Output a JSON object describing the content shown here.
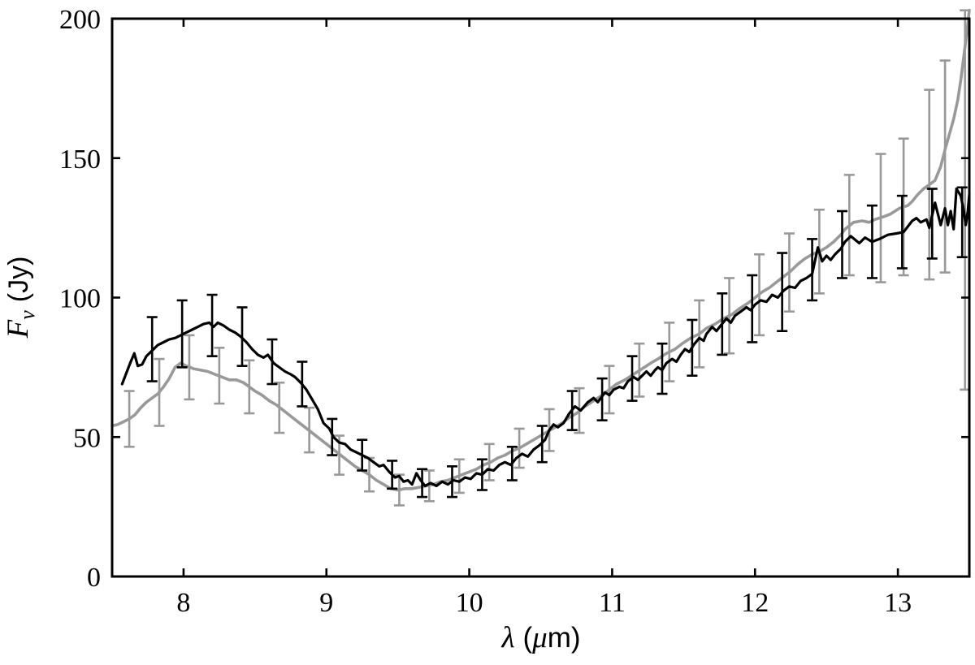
{
  "figure": {
    "background": "#ffffff",
    "axis_color": "#000000"
  },
  "chart_data": {
    "type": "line",
    "title": "",
    "xlabel": "λ (μm)",
    "ylabel": "F_ν (Jy)",
    "xlabel_parts": {
      "lambda": "λ",
      "open": "(",
      "mu": "μ",
      "close": "m)"
    },
    "ylabel_parts": {
      "F": "F",
      "nu": "ν",
      "units": "(Jy)"
    },
    "xlim": [
      7.5,
      13.5
    ],
    "ylim": [
      0,
      200
    ],
    "xticks": [
      8,
      9,
      10,
      11,
      12,
      13
    ],
    "yticks": [
      0,
      50,
      100,
      150,
      200
    ],
    "grid": false,
    "legend": "none",
    "series": [
      {
        "name": "gray-spectrum",
        "color": "#999999",
        "line_width": 3.6,
        "x": [
          7.5,
          7.54,
          7.58,
          7.62,
          7.66,
          7.7,
          7.74,
          7.78,
          7.82,
          7.86,
          7.9,
          7.94,
          7.98,
          8.02,
          8.07,
          8.12,
          8.17,
          8.22,
          8.27,
          8.32,
          8.37,
          8.42,
          8.46,
          8.5,
          8.55,
          8.6,
          8.65,
          8.7,
          8.75,
          8.8,
          8.85,
          8.9,
          8.95,
          9.0,
          9.05,
          9.1,
          9.15,
          9.2,
          9.25,
          9.3,
          9.35,
          9.4,
          9.45,
          9.5,
          9.55,
          9.6,
          9.65,
          9.7,
          9.75,
          9.8,
          9.85,
          9.9,
          9.95,
          10.0,
          10.05,
          10.1,
          10.15,
          10.2,
          10.25,
          10.3,
          10.35,
          10.4,
          10.45,
          10.5,
          10.55,
          10.6,
          10.65,
          10.7,
          10.75,
          10.81,
          10.87,
          10.93,
          10.98,
          11.03,
          11.09,
          11.15,
          11.21,
          11.27,
          11.32,
          11.38,
          11.44,
          11.49,
          11.55,
          11.61,
          11.66,
          11.72,
          11.78,
          11.84,
          11.89,
          11.95,
          12.0,
          12.05,
          12.1,
          12.15,
          12.2,
          12.25,
          12.3,
          12.35,
          12.4,
          12.45,
          12.5,
          12.55,
          12.6,
          12.63,
          12.69,
          12.75,
          12.8,
          12.84,
          12.9,
          12.95,
          13.01,
          13.07,
          13.1,
          13.14,
          13.18,
          13.22,
          13.26,
          13.3,
          13.33,
          13.36,
          13.39,
          13.42,
          13.44,
          13.46,
          13.48,
          13.5
        ],
        "y": [
          54,
          54.5,
          55.5,
          56.5,
          58,
          60.5,
          62.5,
          64,
          65.5,
          68,
          71,
          75,
          76.5,
          75.5,
          74.5,
          74,
          73.5,
          72.5,
          71.5,
          70.5,
          70.5,
          69.5,
          68,
          66.5,
          65,
          63,
          61.5,
          59.5,
          57.5,
          55.5,
          53.5,
          51.5,
          49.5,
          47.5,
          45.5,
          43.5,
          41.5,
          39.5,
          38,
          36.5,
          34.5,
          33,
          31.5,
          31,
          31.5,
          31.5,
          32,
          32.5,
          33,
          34,
          34.5,
          35.5,
          36.5,
          37.5,
          38.5,
          40,
          41,
          42.5,
          43.5,
          45,
          46,
          47.5,
          49,
          50.5,
          52,
          53.5,
          55,
          57,
          58.5,
          61,
          63,
          65,
          67,
          69,
          70.5,
          72.5,
          74.5,
          76.5,
          78,
          80,
          81.5,
          83.5,
          85.5,
          87,
          89,
          90.5,
          92.5,
          94,
          96,
          98,
          100,
          102,
          103.5,
          105.5,
          107.5,
          109.5,
          112,
          114,
          115.5,
          116.5,
          118,
          120,
          122.5,
          124.5,
          127,
          127.5,
          127,
          128,
          129,
          130,
          132,
          133,
          134.5,
          137,
          139,
          140.5,
          142,
          147,
          153,
          158.5,
          164,
          171,
          178,
          186,
          194,
          203
        ],
        "errorbars": [
          [
            7.62,
            56.5,
            10
          ],
          [
            7.83,
            66,
            12
          ],
          [
            8.04,
            75,
            11.5
          ],
          [
            8.25,
            72,
            10
          ],
          [
            8.46,
            68,
            9.5
          ],
          [
            8.67,
            60.5,
            9
          ],
          [
            8.88,
            52.5,
            8
          ],
          [
            9.09,
            43.5,
            7
          ],
          [
            9.3,
            36.5,
            6
          ],
          [
            9.51,
            31,
            5.5
          ],
          [
            9.72,
            32.5,
            5.5
          ],
          [
            9.93,
            36,
            6
          ],
          [
            10.14,
            41,
            6.5
          ],
          [
            10.35,
            46,
            7
          ],
          [
            10.56,
            52.5,
            7.5
          ],
          [
            10.77,
            59.5,
            8
          ],
          [
            10.98,
            67,
            8.5
          ],
          [
            11.19,
            74,
            9.5
          ],
          [
            11.4,
            80.5,
            10.5
          ],
          [
            11.61,
            87,
            12
          ],
          [
            11.82,
            93.5,
            13.5
          ],
          [
            12.03,
            101,
            14.5
          ],
          [
            12.24,
            109,
            14
          ],
          [
            12.45,
            116.5,
            15
          ],
          [
            12.66,
            126,
            18
          ],
          [
            12.88,
            128.5,
            23
          ],
          [
            13.04,
            132.5,
            24.5
          ],
          [
            13.22,
            140.5,
            34
          ],
          [
            13.33,
            147,
            38
          ],
          [
            13.47,
            135,
            68
          ]
        ]
      },
      {
        "name": "black-spectrum",
        "color": "#000000",
        "line_width": 3.2,
        "x": [
          7.57,
          7.6,
          7.63,
          7.655,
          7.68,
          7.71,
          7.74,
          7.78,
          7.82,
          7.86,
          7.9,
          7.94,
          7.98,
          8.02,
          8.06,
          8.1,
          8.14,
          8.18,
          8.21,
          8.24,
          8.28,
          8.32,
          8.36,
          8.4,
          8.44,
          8.48,
          8.52,
          8.56,
          8.59,
          8.63,
          8.67,
          8.71,
          8.75,
          8.78,
          8.82,
          8.86,
          8.9,
          8.94,
          8.98,
          9.02,
          9.05,
          9.09,
          9.13,
          9.17,
          9.21,
          9.25,
          9.29,
          9.33,
          9.37,
          9.4,
          9.44,
          9.48,
          9.51,
          9.54,
          9.57,
          9.6,
          9.63,
          9.66,
          9.69,
          9.73,
          9.77,
          9.81,
          9.85,
          9.89,
          9.93,
          9.97,
          10.01,
          10.05,
          10.09,
          10.13,
          10.17,
          10.21,
          10.25,
          10.29,
          10.33,
          10.37,
          10.41,
          10.45,
          10.49,
          10.53,
          10.56,
          10.59,
          10.62,
          10.66,
          10.7,
          10.74,
          10.78,
          10.83,
          10.87,
          10.9,
          10.95,
          10.98,
          11.01,
          11.05,
          11.08,
          11.11,
          11.15,
          11.18,
          11.21,
          11.24,
          11.27,
          11.3,
          11.32,
          11.35,
          11.38,
          11.42,
          11.45,
          11.48,
          11.51,
          11.54,
          11.57,
          11.61,
          11.64,
          11.66,
          11.7,
          11.73,
          11.76,
          11.8,
          11.83,
          11.86,
          11.9,
          11.94,
          11.97,
          12.0,
          12.04,
          12.08,
          12.12,
          12.16,
          12.2,
          12.24,
          12.28,
          12.32,
          12.36,
          12.4,
          12.44,
          12.47,
          12.5,
          12.53,
          12.56,
          12.6,
          12.63,
          12.67,
          12.73,
          12.77,
          12.82,
          12.87,
          12.93,
          12.99,
          13.04,
          13.1,
          13.13,
          13.16,
          13.2,
          13.22,
          13.26,
          13.28,
          13.3,
          13.33,
          13.35,
          13.37,
          13.39,
          13.41,
          13.44,
          13.46,
          13.475,
          13.49,
          13.5
        ],
        "y": [
          69,
          73,
          77,
          80,
          75.5,
          76,
          79,
          81,
          83,
          84,
          85,
          85.5,
          86.5,
          87.5,
          88.5,
          89.5,
          90.5,
          91,
          89.5,
          91,
          90,
          88.5,
          87.5,
          86,
          84,
          81.5,
          79.5,
          78.5,
          79.5,
          76.5,
          75,
          73.5,
          72.5,
          71.5,
          69.5,
          67,
          63.5,
          60,
          55,
          53,
          50,
          48,
          47.5,
          45.5,
          44.5,
          43.5,
          42.5,
          41,
          39.5,
          40,
          37.5,
          35.5,
          36,
          34,
          34.5,
          33,
          37,
          34.5,
          32.5,
          33.5,
          32.5,
          34,
          33,
          34.5,
          34,
          35.5,
          35,
          37,
          36.5,
          38.5,
          38,
          40,
          41,
          40,
          42.5,
          44,
          43,
          45.5,
          47,
          49,
          52.5,
          54.5,
          53.5,
          55,
          58.5,
          61,
          59.5,
          62.5,
          64,
          62.5,
          66,
          65,
          67,
          68,
          67.5,
          70,
          71.5,
          70.5,
          72,
          73.5,
          72,
          74,
          75,
          74,
          76.5,
          78,
          77,
          79.5,
          81.5,
          80.5,
          83,
          85.5,
          84.5,
          87,
          89.5,
          88,
          90,
          92.5,
          91,
          93.5,
          95,
          96.5,
          95.5,
          97.5,
          99,
          98.5,
          101,
          100,
          102.5,
          104,
          103.5,
          106,
          107,
          108.5,
          118,
          113,
          115,
          113.5,
          115.5,
          117.5,
          120,
          122,
          119.5,
          121.5,
          120,
          121,
          122.5,
          123,
          123.5,
          127.5,
          128.5,
          127,
          128,
          125,
          134,
          130,
          126,
          132,
          126,
          131,
          124.5,
          139,
          136.5,
          131.5,
          126,
          131,
          137
        ],
        "errorbars": [
          [
            7.78,
            81.5,
            11.5
          ],
          [
            7.99,
            87,
            12
          ],
          [
            8.2,
            90,
            11
          ],
          [
            8.41,
            86,
            10.5
          ],
          [
            8.62,
            77,
            8
          ],
          [
            8.83,
            69,
            8
          ],
          [
            9.04,
            50,
            6.5
          ],
          [
            9.25,
            43.5,
            5.5
          ],
          [
            9.46,
            36.5,
            5
          ],
          [
            9.67,
            33.5,
            5
          ],
          [
            9.88,
            34,
            5.5
          ],
          [
            10.09,
            36.5,
            5.5
          ],
          [
            10.3,
            40.5,
            6
          ],
          [
            10.51,
            47.5,
            6.5
          ],
          [
            10.72,
            59.5,
            7
          ],
          [
            10.93,
            63.5,
            7.5
          ],
          [
            11.14,
            71,
            8
          ],
          [
            11.35,
            74.5,
            9
          ],
          [
            11.56,
            82,
            10
          ],
          [
            11.77,
            90.5,
            11
          ],
          [
            11.98,
            96,
            12
          ],
          [
            12.19,
            102,
            14
          ],
          [
            12.4,
            110,
            11
          ],
          [
            12.61,
            119,
            12
          ],
          [
            12.82,
            120,
            13
          ],
          [
            13.03,
            123.5,
            13
          ],
          [
            13.24,
            126.5,
            12.5
          ],
          [
            13.45,
            127,
            12.5
          ]
        ]
      }
    ]
  }
}
